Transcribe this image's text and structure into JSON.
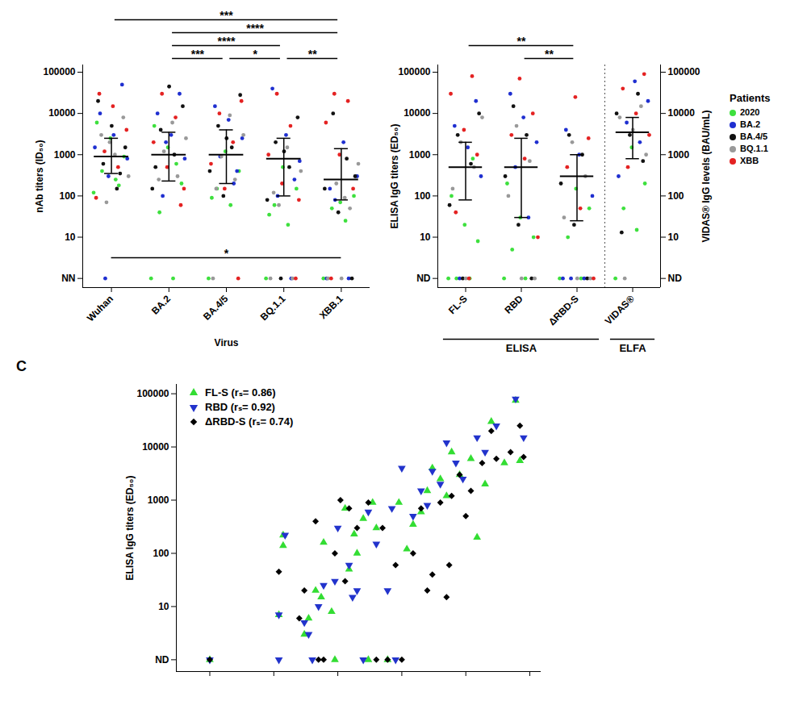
{
  "chart_data": [
    {
      "type": "strip",
      "ylabel": "nAb titers (ID₅₀)",
      "xlabel": "Virus",
      "categories": [
        "Wuhan",
        "BA.2",
        "BA.4/5",
        "BQ.1.1",
        "XBB.1"
      ],
      "log": "y",
      "ylim": [
        0.6,
        150000
      ],
      "yticks": [
        {
          "value": 1,
          "label": "NN"
        },
        10,
        100,
        1000,
        10000,
        100000
      ],
      "series": [
        {
          "name": "2020",
          "color": "#3ee03e",
          "values": [
            [
              120,
              250,
              400,
              900,
              2500,
              6000,
              180
            ],
            [
              1,
              1,
              40,
              200,
              1500,
              5000,
              600
            ],
            [
              1,
              60,
              150,
              400,
              1200,
              90
            ],
            [
              1,
              20,
              60,
              150,
              500,
              35
            ],
            [
              1,
              25,
              50,
              100,
              70
            ]
          ]
        },
        {
          "name": "BA.2",
          "color": "#1f2fd0",
          "values": [
            [
              1,
              800,
              3000,
              10000,
              50000,
              300,
              1500
            ],
            [
              100,
              800,
              3000,
              10000,
              30000,
              2000
            ],
            [
              200,
              900,
              2500,
              7000,
              15000,
              400
            ],
            [
              1,
              100,
              700,
              3000,
              40000,
              250
            ],
            [
              1,
              1,
              80,
              300,
              2000,
              150
            ]
          ]
        },
        {
          "name": "BA.4/5",
          "color": "#111111",
          "values": [
            [
              150,
              600,
              1500,
              5000,
              20000,
              350
            ],
            [
              150,
              1000,
              4000,
              15000,
              45000,
              500
            ],
            [
              100,
              400,
              1500,
              5000,
              28000,
              2500
            ],
            [
              1,
              80,
              500,
              2000,
              8000,
              1200
            ],
            [
              1,
              40,
              150,
              800,
              10000,
              300
            ]
          ]
        },
        {
          "name": "BQ.1.1",
          "color": "#999999",
          "values": [
            [
              70,
              300,
              1000,
              3000,
              8000,
              2000
            ],
            [
              300,
              1200,
              2500,
              6000,
              250
            ],
            [
              1,
              250,
              900,
              3000,
              9000,
              150
            ],
            [
              1,
              1,
              60,
              400,
              1500,
              120
            ],
            [
              1,
              1,
              50,
              200,
              600,
              90
            ]
          ]
        },
        {
          "name": "XBB",
          "color": "#e42222",
          "values": [
            [
              90,
              500,
              1200,
              4000,
              15000,
              30000
            ],
            [
              60,
              500,
              2000,
              8000,
              30000,
              150
            ],
            [
              1,
              150,
              600,
              2000,
              10000,
              20000
            ],
            [
              1,
              200,
              1000,
              5000,
              30000,
              80
            ],
            [
              1,
              150,
              1000,
              6000,
              20000,
              30000
            ]
          ]
        }
      ],
      "median": [
        900,
        1000,
        1000,
        800,
        250
      ],
      "q1": [
        350,
        230,
        200,
        100,
        80
      ],
      "q3": [
        2500,
        3500,
        4000,
        2500,
        1400
      ],
      "annotations": [
        {
          "from": "Wuhan",
          "to": "XBB.1",
          "label": "***"
        },
        {
          "from": "BA.2",
          "to": "XBB.1",
          "label": "****"
        },
        {
          "from": "BA.2",
          "to": "BQ.1.1",
          "label": "****"
        },
        {
          "from": "BA.2",
          "to": "BA.4/5",
          "label": "***"
        },
        {
          "from": "BA.4/5",
          "to": "BQ.1.1",
          "label": "*"
        },
        {
          "from": "BQ.1.1",
          "to": "XBB.1",
          "label": "**"
        }
      ],
      "bottom_annotations": [
        {
          "from": "Wuhan",
          "to": "XBB.1",
          "label": "*"
        }
      ]
    },
    {
      "type": "strip",
      "ylabel": "ELISA IgG titers (ED₅₀)",
      "y2label": "VIDAS® IgG levels (BAU/mL)",
      "categories": [
        "FL-S",
        "RBD",
        "ΔRBD-S",
        "VIDAS®"
      ],
      "log": "y",
      "ylim": [
        0.6,
        150000
      ],
      "yticks": [
        {
          "value": 1,
          "label": "ND"
        },
        10,
        100,
        1000,
        10000,
        100000
      ],
      "y2lim": [
        0.6,
        150000
      ],
      "y2ticks": [
        {
          "value": 1,
          "label": "ND"
        },
        10,
        100,
        1000,
        10000,
        100000
      ],
      "legend": "right",
      "legend_title": "Patients",
      "series": [
        {
          "name": "2020",
          "color": "#3ee03e",
          "values": [
            [
              1,
              1,
              1,
              8,
              20,
              100,
              800
            ],
            [
              1,
              1,
              5,
              10,
              30,
              200
            ],
            [
              1,
              1,
              10,
              50,
              150
            ],
            [
              1,
              15,
              50,
              200,
              1500
            ]
          ]
        },
        {
          "name": "BA.2",
          "color": "#1f2fd0",
          "values": [
            [
              1,
              300,
              1500,
              5000,
              20000
            ],
            [
              30,
              500,
              2000,
              8000,
              30000
            ],
            [
              1,
              1,
              1,
              100,
              1000,
              4000
            ],
            [
              300,
              2000,
              6000,
              20000,
              60000
            ]
          ]
        },
        {
          "name": "BA.4/5",
          "color": "#111111",
          "values": [
            [
              1,
              60,
              600,
              3000,
              10000
            ],
            [
              1,
              20,
              300,
              3000,
              15000
            ],
            [
              1,
              20,
              200,
              1000,
              3000
            ],
            [
              13,
              700,
              3000,
              10000,
              30000
            ]
          ]
        },
        {
          "name": "BQ.1.1",
          "color": "#999999",
          "values": [
            [
              1,
              150,
              500,
              2000,
              8000
            ],
            [
              1,
              1,
              100,
              700,
              5000
            ],
            [
              1,
              1,
              30,
              300,
              2000
            ],
            [
              1,
              1000,
              4000,
              8000,
              15000
            ]
          ]
        },
        {
          "name": "XBB",
          "color": "#e42222",
          "values": [
            [
              1,
              40,
              1000,
              4000,
              30000,
              80000
            ],
            [
              10,
              800,
              3000,
              10000,
              70000
            ],
            [
              1,
              50,
              500,
              2500,
              25000
            ],
            [
              500,
              3000,
              10000,
              40000,
              90000
            ]
          ]
        }
      ],
      "median": [
        500,
        500,
        300,
        3500
      ],
      "q1": [
        80,
        30,
        25,
        800
      ],
      "q3": [
        2000,
        2500,
        1000,
        8000
      ],
      "annotations": [
        {
          "from": "FL-S",
          "to": "ΔRBD-S",
          "label": "**"
        },
        {
          "from": "RBD",
          "to": "ΔRBD-S",
          "label": "**"
        }
      ],
      "groups": [
        {
          "label": "ELISA",
          "from": "FL-S",
          "to": "ΔRBD-S"
        },
        {
          "label": "ELFA",
          "from": "VIDAS®",
          "to": "VIDAS®"
        }
      ]
    },
    {
      "type": "scatter",
      "panel_label": "C",
      "ylabel": "ELISA IgG titers (ED₅₀)",
      "log": true,
      "xlim": [
        0.3,
        150000
      ],
      "xticks": [
        1,
        10,
        100,
        1000,
        10000,
        100000
      ],
      "ylim": [
        0.6,
        150000
      ],
      "yticks": [
        {
          "value": 1,
          "label": "ND"
        },
        10,
        100,
        1000,
        10000,
        100000
      ],
      "tick_labels": "y",
      "legend": "upper left",
      "series": [
        {
          "name": "FL-S (rₛ= 0.86)",
          "color": "#33dd33",
          "marker": "triangle",
          "x": [
            1,
            12,
            14,
            14,
            30,
            35,
            45,
            55,
            60,
            80,
            90,
            130,
            150,
            180,
            200,
            250,
            300,
            350,
            400,
            600,
            900,
            1200,
            1500,
            2000,
            2500,
            3000,
            4000,
            5000,
            6000,
            8000,
            12000,
            15000,
            20000,
            25000,
            40000,
            60000,
            70000
          ],
          "values": [
            1,
            7,
            220,
            140,
            3,
            6,
            20,
            15,
            160,
            8,
            1,
            700,
            50,
            230,
            100,
            450,
            1,
            900,
            300,
            1,
            900,
            120,
            350,
            600,
            1500,
            4000,
            2500,
            1200,
            8000,
            3000,
            6000,
            200,
            2000,
            30000,
            5000,
            75000,
            5500
          ]
        },
        {
          "name": "RBD (rₛ= 0.92)",
          "color": "#2233cc",
          "marker": "triangle-down",
          "x": [
            1,
            12,
            12,
            15,
            30,
            35,
            40,
            50,
            60,
            90,
            100,
            150,
            170,
            200,
            250,
            300,
            400,
            600,
            700,
            800,
            1000,
            1500,
            2000,
            2500,
            3000,
            4000,
            5000,
            7000,
            9000,
            15000,
            20000,
            30000,
            60000,
            80000
          ],
          "values": [
            1,
            7,
            1,
            220,
            5,
            3,
            1,
            10,
            25,
            30,
            300,
            60,
            15,
            20,
            1,
            600,
            150,
            20,
            700,
            1,
            4000,
            500,
            1500,
            800,
            3500,
            2000,
            12000,
            5000,
            2500,
            15000,
            8000,
            25000,
            80000,
            15000
          ]
        },
        {
          "name": "ΔRBD-S (rₛ= 0.74)",
          "color": "#000000",
          "marker": "diamond",
          "x": [
            1,
            12,
            25,
            30,
            45,
            50,
            60,
            90,
            110,
            130,
            150,
            200,
            300,
            400,
            500,
            600,
            800,
            1000,
            1500,
            2000,
            2500,
            3000,
            4000,
            5000,
            5500,
            6000,
            8000,
            10000,
            12000,
            18000,
            25000,
            30000,
            50000,
            70000,
            80000
          ],
          "values": [
            1,
            45,
            6,
            20,
            400,
            1,
            1,
            100,
            1000,
            30,
            700,
            300,
            900,
            1,
            300,
            1,
            60,
            1,
            100,
            700,
            20,
            40,
            900,
            15,
            60,
            1200,
            3000,
            500,
            1500,
            5000,
            20000,
            6000,
            8000,
            25000,
            6500
          ]
        }
      ]
    }
  ]
}
